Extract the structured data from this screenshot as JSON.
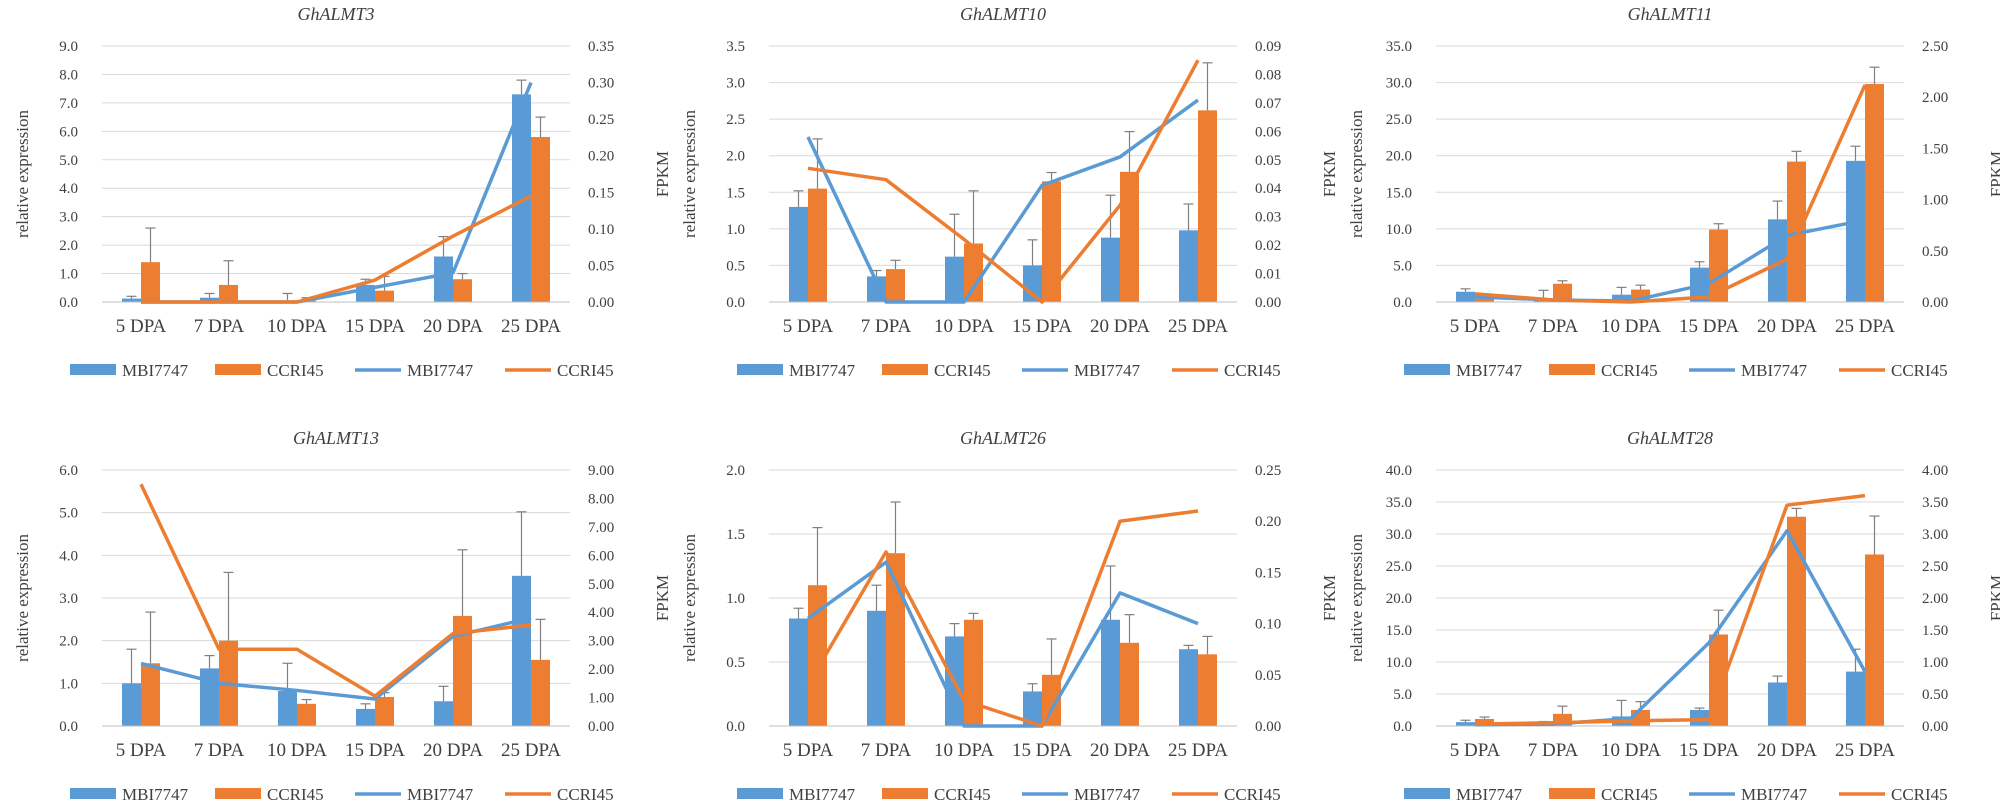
{
  "colors": {
    "mbi": "#5B9BD5",
    "ccri": "#ED7D31",
    "grid": "#D9D9D9",
    "text": "#404040",
    "err": "#808080"
  },
  "legend_labels": [
    "MBI7747",
    "CCRI45",
    "MBI7747",
    "CCRI45"
  ],
  "chart_data": [
    {
      "type": "bar+line",
      "title": "GhALMT3",
      "categories": [
        "5 DPA",
        "7 DPA",
        "10 DPA",
        "15 DPA",
        "20 DPA",
        "25 DPA"
      ],
      "ylabel": "relative expression",
      "y2label": "FPKM",
      "ylim": [
        0,
        9
      ],
      "yticks": [
        "0.0",
        "1.0",
        "2.0",
        "3.0",
        "4.0",
        "5.0",
        "6.0",
        "7.0",
        "8.0",
        "9.0"
      ],
      "y2lim": [
        0,
        0.35
      ],
      "y2ticks": [
        "0.00",
        "0.05",
        "0.10",
        "0.15",
        "0.20",
        "0.25",
        "0.30",
        "0.35"
      ],
      "bars": [
        {
          "name": "MBI7747",
          "values": [
            0.12,
            0.15,
            0.05,
            0.6,
            1.6,
            7.3
          ],
          "errors": [
            0.08,
            0.15,
            0.25,
            0.2,
            0.7,
            0.5
          ]
        },
        {
          "name": "CCRI45",
          "values": [
            1.4,
            0.6,
            0.05,
            0.4,
            0.8,
            5.8
          ],
          "errors": [
            1.2,
            0.85,
            0.1,
            0.5,
            0.2,
            0.7
          ]
        }
      ],
      "lines": [
        {
          "name": "MBI7747",
          "values": [
            0.0,
            0.0,
            0.0,
            0.02,
            0.04,
            0.3
          ]
        },
        {
          "name": "CCRI45",
          "values": [
            0.0,
            0.0,
            0.0,
            0.03,
            0.09,
            0.145
          ]
        }
      ]
    },
    {
      "type": "bar+line",
      "title": "GhALMT10",
      "categories": [
        "5 DPA",
        "7 DPA",
        "10 DPA",
        "15 DPA",
        "20 DPA",
        "25 DPA"
      ],
      "ylabel": "relative expression",
      "y2label": "FPKM",
      "ylim": [
        0,
        3.5
      ],
      "yticks": [
        "0.0",
        "0.5",
        "1.0",
        "1.5",
        "2.0",
        "2.5",
        "3.0",
        "3.5"
      ],
      "y2lim": [
        0,
        0.09
      ],
      "y2ticks": [
        "0.00",
        "0.01",
        "0.02",
        "0.03",
        "0.04",
        "0.05",
        "0.06",
        "0.07",
        "0.08",
        "0.09"
      ],
      "bars": [
        {
          "name": "MBI7747",
          "values": [
            1.3,
            0.35,
            0.62,
            0.5,
            0.88,
            0.98
          ],
          "errors": [
            0.22,
            0.08,
            0.58,
            0.35,
            0.58,
            0.36
          ]
        },
        {
          "name": "CCRI45",
          "values": [
            1.55,
            0.45,
            0.8,
            1.65,
            1.78,
            2.62
          ],
          "errors": [
            0.68,
            0.12,
            0.72,
            0.12,
            0.55,
            0.65
          ]
        }
      ],
      "lines": [
        {
          "name": "MBI7747",
          "values": [
            0.058,
            0.0,
            0.0,
            0.041,
            0.051,
            0.071
          ]
        },
        {
          "name": "CCRI45",
          "values": [
            0.047,
            0.043,
            0.022,
            0.0,
            0.034,
            0.085
          ]
        }
      ]
    },
    {
      "type": "bar+line",
      "title": "GhALMT11",
      "categories": [
        "5 DPA",
        "7 DPA",
        "10 DPA",
        "15 DPA",
        "20 DPA",
        "25 DPA"
      ],
      "ylabel": "relative expression",
      "y2label": "FPKM",
      "ylim": [
        0,
        35
      ],
      "yticks": [
        "0.0",
        "5.0",
        "10.0",
        "15.0",
        "20.0",
        "25.0",
        "30.0",
        "35.0"
      ],
      "y2lim": [
        0,
        2.5
      ],
      "y2ticks": [
        "0.00",
        "0.50",
        "1.00",
        "1.50",
        "2.00",
        "2.50"
      ],
      "bars": [
        {
          "name": "MBI7747",
          "values": [
            1.4,
            0.4,
            1.0,
            4.7,
            11.3,
            19.3
          ],
          "errors": [
            0.4,
            1.2,
            1.0,
            0.8,
            2.5,
            2.0
          ]
        },
        {
          "name": "CCRI45",
          "values": [
            0.8,
            2.5,
            1.7,
            9.9,
            19.2,
            29.8
          ],
          "errors": [
            0.3,
            0.4,
            0.6,
            0.8,
            1.4,
            2.3
          ]
        }
      ],
      "lines": [
        {
          "name": "MBI7747",
          "values": [
            0.05,
            0.02,
            0.01,
            0.18,
            0.65,
            0.8
          ]
        },
        {
          "name": "CCRI45",
          "values": [
            0.08,
            0.02,
            0.0,
            0.05,
            0.42,
            2.12
          ]
        }
      ]
    },
    {
      "type": "bar+line",
      "title": "GhALMT13",
      "categories": [
        "5 DPA",
        "7 DPA",
        "10 DPA",
        "15 DPA",
        "20 DPA",
        "25 DPA"
      ],
      "ylabel": "relative expression",
      "y2label": "FPKM",
      "ylim": [
        0,
        6
      ],
      "yticks": [
        "0.0",
        "1.0",
        "2.0",
        "3.0",
        "4.0",
        "5.0",
        "6.0"
      ],
      "y2lim": [
        0,
        9
      ],
      "y2ticks": [
        "0.00",
        "1.00",
        "2.00",
        "3.00",
        "4.00",
        "5.00",
        "6.00",
        "7.00",
        "8.00",
        "9.00"
      ],
      "bars": [
        {
          "name": "MBI7747",
          "values": [
            1.0,
            1.35,
            0.82,
            0.4,
            0.58,
            3.52
          ],
          "errors": [
            0.8,
            0.3,
            0.65,
            0.12,
            0.35,
            1.5
          ]
        },
        {
          "name": "CCRI45",
          "values": [
            1.47,
            2.0,
            0.52,
            0.68,
            2.58,
            1.55
          ],
          "errors": [
            1.2,
            1.6,
            0.1,
            0.1,
            1.55,
            0.95
          ]
        }
      ],
      "lines": [
        {
          "name": "MBI7747",
          "values": [
            2.2,
            1.5,
            1.25,
            0.95,
            3.15,
            3.8
          ]
        },
        {
          "name": "CCRI45",
          "values": [
            8.5,
            2.7,
            2.7,
            1.05,
            3.25,
            3.55
          ]
        }
      ]
    },
    {
      "type": "bar+line",
      "title": "GhALMT26",
      "categories": [
        "5 DPA",
        "7 DPA",
        "10 DPA",
        "15 DPA",
        "20 DPA",
        "25 DPA"
      ],
      "ylabel": "relative expression",
      "y2label": "FPKM",
      "ylim": [
        0,
        2
      ],
      "yticks": [
        "0.0",
        "0.5",
        "1.0",
        "1.5",
        "2.0"
      ],
      "y2lim": [
        0,
        0.25
      ],
      "y2ticks": [
        "0.00",
        "0.05",
        "0.10",
        "0.15",
        "0.20",
        "0.25"
      ],
      "bars": [
        {
          "name": "MBI7747",
          "values": [
            0.84,
            0.9,
            0.7,
            0.27,
            0.83,
            0.6
          ],
          "errors": [
            0.08,
            0.2,
            0.1,
            0.06,
            0.42,
            0.03
          ]
        },
        {
          "name": "CCRI45",
          "values": [
            1.1,
            1.35,
            0.83,
            0.4,
            0.65,
            0.56
          ],
          "errors": [
            0.45,
            0.4,
            0.05,
            0.28,
            0.22,
            0.14
          ]
        }
      ],
      "lines": [
        {
          "name": "MBI7747",
          "values": [
            0.105,
            0.16,
            0.0,
            0.0,
            0.13,
            0.1
          ]
        },
        {
          "name": "CCRI45",
          "values": [
            0.04,
            0.17,
            0.025,
            0.0,
            0.2,
            0.21
          ]
        }
      ]
    },
    {
      "type": "bar+line",
      "title": "GhALMT28",
      "categories": [
        "5 DPA",
        "7 DPA",
        "10 DPA",
        "15 DPA",
        "20 DPA",
        "25 DPA"
      ],
      "ylabel": "relative expression",
      "y2label": "FPKM",
      "ylim": [
        0,
        40
      ],
      "yticks": [
        "0.0",
        "5.0",
        "10.0",
        "15.0",
        "20.0",
        "25.0",
        "30.0",
        "35.0",
        "40.0"
      ],
      "y2lim": [
        0,
        4
      ],
      "y2ticks": [
        "0.00",
        "0.50",
        "1.00",
        "1.50",
        "2.00",
        "2.50",
        "3.00",
        "3.50",
        "4.00"
      ],
      "bars": [
        {
          "name": "MBI7747",
          "values": [
            0.6,
            0.4,
            1.5,
            2.5,
            6.8,
            8.5
          ],
          "errors": [
            0.3,
            0.3,
            2.5,
            0.3,
            1.0,
            3.5
          ]
        },
        {
          "name": "CCRI45",
          "values": [
            1.1,
            1.9,
            2.5,
            14.3,
            32.7,
            26.8
          ],
          "errors": [
            0.3,
            1.2,
            1.3,
            3.8,
            1.3,
            6.0
          ]
        }
      ],
      "lines": [
        {
          "name": "MBI7747",
          "values": [
            0.02,
            0.03,
            0.12,
            1.3,
            3.05,
            0.85
          ]
        },
        {
          "name": "CCRI45",
          "values": [
            0.03,
            0.05,
            0.08,
            0.1,
            3.45,
            3.6
          ]
        }
      ]
    }
  ]
}
